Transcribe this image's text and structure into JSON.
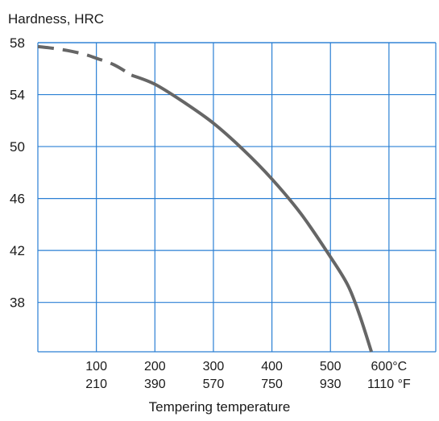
{
  "chart_data": {
    "type": "line",
    "ylabel": "Hardness, HRC",
    "xlabel": "Tempering temperature",
    "x_unit_primary": "°C",
    "x_unit_secondary": "°F",
    "x_ticks_c": [
      {
        "c": 100,
        "label_c": "100",
        "label_f": "210"
      },
      {
        "c": 200,
        "label_c": "200",
        "label_f": "390"
      },
      {
        "c": 300,
        "label_c": "300",
        "label_f": "570"
      },
      {
        "c": 400,
        "label_c": "400",
        "label_f": "750"
      },
      {
        "c": 500,
        "label_c": "500",
        "label_f": "930"
      },
      {
        "c": 600,
        "label_c": "600°C",
        "label_f": "1110 °F"
      }
    ],
    "y_ticks": [
      {
        "v": 58,
        "label": "58"
      },
      {
        "v": 54,
        "label": "54"
      },
      {
        "v": 50,
        "label": "50"
      },
      {
        "v": 46,
        "label": "46"
      },
      {
        "v": 42,
        "label": "42"
      },
      {
        "v": 38,
        "label": "38"
      }
    ],
    "xlim": [
      0,
      680
    ],
    "ylim": [
      34.2,
      58
    ],
    "grid": true,
    "colors": {
      "grid": "#2a7fd4",
      "curve": "#666666"
    },
    "series": [
      {
        "style": "dashed",
        "x": [
          0,
          20,
          50,
          80,
          100,
          130,
          160
        ],
        "y": [
          57.7,
          57.6,
          57.4,
          57.1,
          56.8,
          56.3,
          55.5
        ]
      },
      {
        "style": "solid",
        "x": [
          160,
          200,
          250,
          300,
          350,
          400,
          450,
          500,
          530,
          550,
          570
        ],
        "y": [
          55.5,
          54.8,
          53.4,
          51.8,
          49.8,
          47.5,
          44.8,
          41.5,
          39.3,
          37.0,
          34.2
        ]
      }
    ]
  }
}
